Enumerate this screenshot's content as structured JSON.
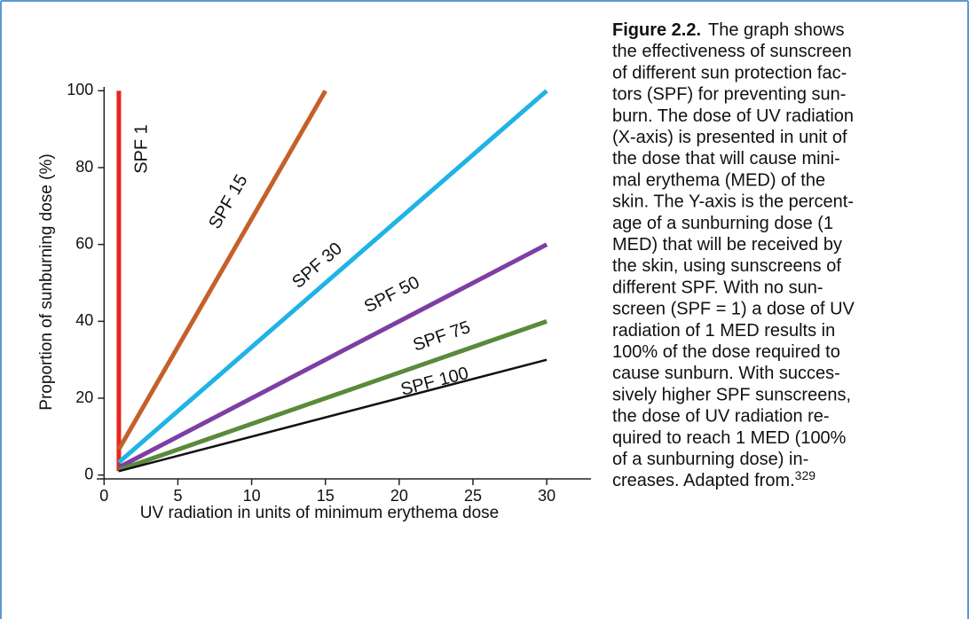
{
  "chart_data": {
    "type": "line",
    "xlabel": "UV radiation in units of minimum erythema dose",
    "ylabel": "Proportion of sunburning dose (%)",
    "xlim": [
      -0.5,
      33
    ],
    "ylim": [
      -1,
      101
    ],
    "xticks": [
      0,
      5,
      10,
      15,
      20,
      25,
      30
    ],
    "yticks": [
      0,
      20,
      40,
      60,
      80,
      100
    ],
    "series": [
      {
        "name": "SPF 1",
        "color": "#e8261e",
        "x": [
          1,
          1
        ],
        "values": [
          1,
          100
        ]
      },
      {
        "name": "SPF 15",
        "color": "#c5602a",
        "x": [
          1,
          15
        ],
        "values": [
          6.7,
          100
        ]
      },
      {
        "name": "SPF 30",
        "color": "#1fb3e6",
        "x": [
          1,
          30
        ],
        "values": [
          3.3,
          100
        ]
      },
      {
        "name": "SPF 50",
        "color": "#7e3ea4",
        "x": [
          1,
          30
        ],
        "values": [
          2,
          60
        ]
      },
      {
        "name": "SPF 75",
        "color": "#5a8a3a",
        "x": [
          1,
          30
        ],
        "values": [
          1.3,
          40
        ]
      },
      {
        "name": "SPF 100",
        "color": "#111111",
        "x": [
          1,
          30
        ],
        "values": [
          1,
          30
        ]
      }
    ]
  },
  "caption": {
    "label": "Figure 2.2.",
    "lines": [
      "The graph shows",
      "the effectiveness of sunscreen",
      "of different sun protection fac-",
      "tors (SPF) for preventing sun-",
      "burn. The dose of UV radiation",
      "(X-axis) is presented in unit of",
      "the dose that will cause mini-",
      "mal erythema (MED) of the",
      "skin. The Y-axis is the percent-",
      "age of a sunburning dose (1",
      "MED) that will be received by",
      "the skin, using sunscreens of",
      "different SPF. With no sun-",
      "screen (SPF = 1) a dose of UV",
      "radiation of 1 MED results in",
      "100% of the dose required to",
      "cause sunburn. With succes-",
      "sively higher SPF sunscreens,",
      "the dose of UV radiation re-",
      "quired to reach 1 MED (100%",
      "of a sunburning dose) in-",
      "creases.  Adapted from."
    ],
    "reference": "329"
  }
}
